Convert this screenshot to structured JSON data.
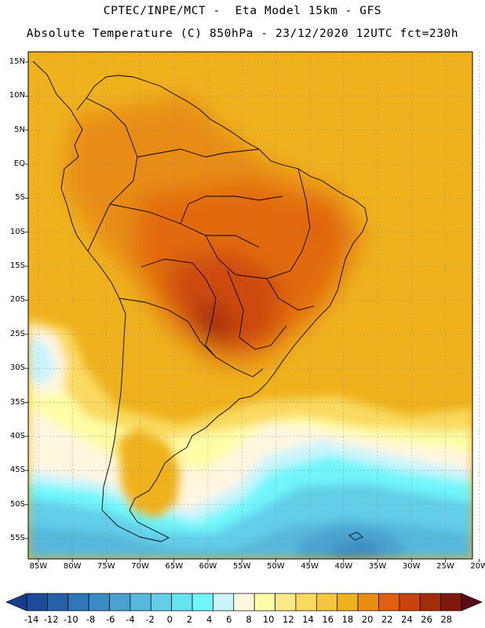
{
  "header": {
    "title_line1": "CPTEC/INPE/MCT -  Eta Model 15km - GFS",
    "title_line2": "Absolute Temperature (C) 850hPa - 23/12/2020 12UTC fct=230h"
  },
  "map": {
    "region": "South America",
    "variable": "Absolute Temperature (C)",
    "level": "850hPa",
    "model": "Eta Model 15km - GFS",
    "lat_labels": [
      "15N",
      "10N",
      "5N",
      "EQ",
      "5S",
      "10S",
      "15S",
      "20S",
      "25S",
      "30S",
      "35S",
      "40S",
      "45S",
      "50S",
      "55S"
    ],
    "lon_labels": [
      "85W",
      "80W",
      "75W",
      "70W",
      "65W",
      "60W",
      "55W",
      "50W",
      "45W",
      "40W",
      "35W",
      "30W",
      "25W",
      "20W"
    ],
    "lat_range": [
      -58,
      16.5
    ],
    "lon_range": [
      -86.5,
      -21
    ]
  },
  "colorbar": {
    "labels": [
      "-14",
      "-12",
      "-10",
      "-8",
      "-6",
      "-4",
      "-2",
      "0",
      "2",
      "4",
      "6",
      "8",
      "10",
      "12",
      "14",
      "16",
      "18",
      "20",
      "22",
      "24",
      "26",
      "28"
    ],
    "colors": [
      "#1a3c8c",
      "#1e4a9a",
      "#2860a8",
      "#2e76b4",
      "#3a8cc2",
      "#48a2d0",
      "#56b8dc",
      "#62cee8",
      "#66e2f0",
      "#70f6fa",
      "#cbf4fb",
      "#fff6e0",
      "#fffca6",
      "#fbe989",
      "#f9d95e",
      "#f3c63d",
      "#efb21c",
      "#e88c14",
      "#e06010",
      "#c9440c",
      "#a32c0a",
      "#7e1a0c",
      "#5c0a18"
    ]
  },
  "colors": {
    "land_outline": "#000000",
    "grid": "#888888"
  }
}
